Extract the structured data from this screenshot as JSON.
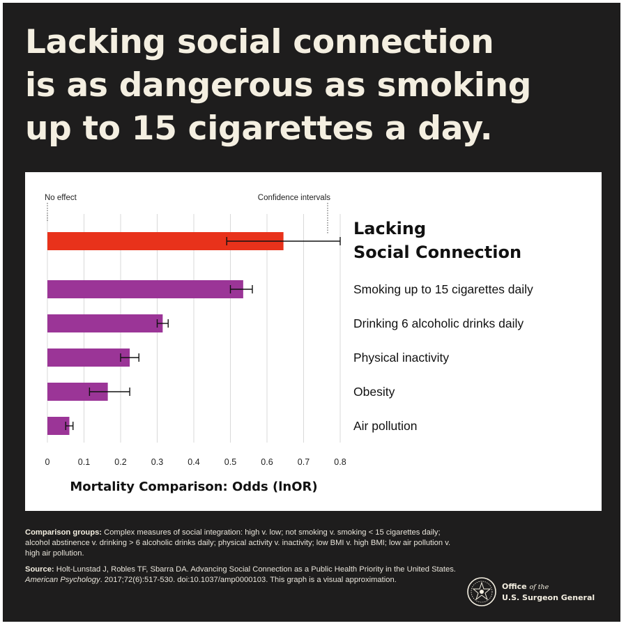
{
  "headline": {
    "line1": "Lacking social connection",
    "line2": "is as dangerous as smoking",
    "line3": "up to 15 cigarettes a day."
  },
  "chart_data": {
    "type": "bar",
    "orientation": "horizontal",
    "title": "",
    "xlabel": "Mortality Comparison: Odds (lnOR)",
    "ylabel": "",
    "xlim": [
      0,
      0.8
    ],
    "xticks": [
      "0",
      "0.1",
      "0.2",
      "0.3",
      "0.4",
      "0.5",
      "0.6",
      "0.7",
      "0.8"
    ],
    "grid": true,
    "annotations": {
      "no_effect": "No effect",
      "confidence_intervals": "Confidence intervals"
    },
    "categories": [
      "Lacking Social Connection",
      "Smoking up to 15 cigarettes daily",
      "Drinking 6 alcoholic drinks daily",
      "Physical inactivity",
      "Obesity",
      "Air pollution"
    ],
    "category_label_lines": [
      [
        "Lacking",
        "Social Connection"
      ],
      [
        "Smoking up to 15 cigarettes daily"
      ],
      [
        "Drinking 6 alcoholic drinks daily"
      ],
      [
        "Physical inactivity"
      ],
      [
        "Obesity"
      ],
      [
        "Air pollution"
      ]
    ],
    "values": [
      0.645,
      0.535,
      0.315,
      0.225,
      0.165,
      0.06
    ],
    "ci_low": [
      0.49,
      0.5,
      0.3,
      0.2,
      0.115,
      0.05
    ],
    "ci_high": [
      0.8,
      0.56,
      0.33,
      0.25,
      0.225,
      0.07
    ],
    "colors": [
      "#e8321b",
      "#9b3597",
      "#9b3597",
      "#9b3597",
      "#9b3597",
      "#9b3597"
    ]
  },
  "notes": {
    "comparison_label": "Comparison groups:",
    "comparison_text": " Complex measures of social integration: high v. low; not smoking v. smoking < 15 cigarettes daily; alcohol abstinence v. drinking > 6 alcoholic drinks daily; physical activity v. inactivity; low BMI v. high BMI; low air pollution v. high air pollution.",
    "source_label": "Source:",
    "source_text_1": " Holt-Lunstad J, Robles TF, Sbarra DA. Advancing Social Connection as a Public Health Priority in the United States. ",
    "source_journal": "American Psychology",
    "source_text_2": ". 2017;72(6):517-530. doi:10.1037/amp0000103. This graph is a visual approximation."
  },
  "logo": {
    "line1_a": "Office",
    "line1_b": "of the",
    "line2": "U.S. Surgeon General"
  },
  "colors": {
    "background": "#1e1d1d",
    "headline": "#f4efe1",
    "highlight_bar": "#e8321b",
    "comparison_bar": "#9b3597"
  }
}
